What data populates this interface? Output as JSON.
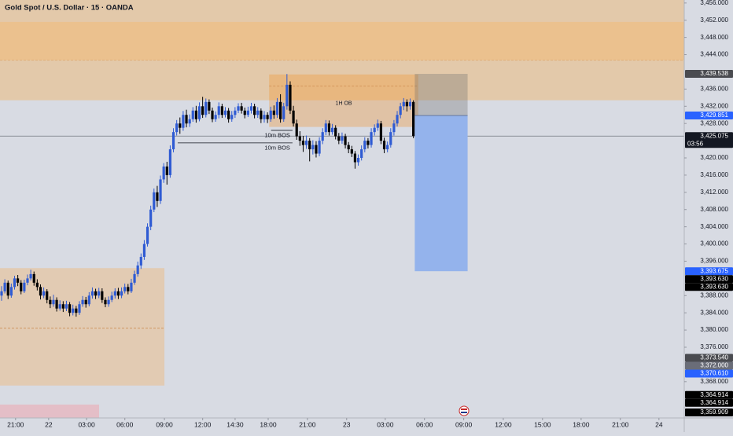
{
  "chart_data": {
    "type": "candlestick",
    "title": "Gold Spot / U.S. Dollar · 15 · OANDA",
    "up_color": "#2f5bd3",
    "down_color": "#000000",
    "xlim": [
      0,
      211
    ],
    "ylim": [
      3360.3,
      3456.7
    ],
    "xticks": [
      {
        "value": 4.8,
        "label": "21:00"
      },
      {
        "value": 15,
        "label": "22"
      },
      {
        "value": 26.7,
        "label": "03:00"
      },
      {
        "value": 38.5,
        "label": "06:00"
      },
      {
        "value": 50.7,
        "label": "09:00"
      },
      {
        "value": 62.5,
        "label": "12:00"
      },
      {
        "value": 72.5,
        "label": "14:30"
      },
      {
        "value": 82.7,
        "label": "18:00"
      },
      {
        "value": 94.8,
        "label": "21:00"
      },
      {
        "value": 106.9,
        "label": "23"
      },
      {
        "value": 118.8,
        "label": "03:00"
      },
      {
        "value": 130.9,
        "label": "06:00"
      },
      {
        "value": 143,
        "label": "09:00"
      },
      {
        "value": 155.2,
        "label": "12:00"
      },
      {
        "value": 167.3,
        "label": "15:00"
      },
      {
        "value": 179.2,
        "label": "18:00"
      },
      {
        "value": 191.3,
        "label": "21:00"
      },
      {
        "value": 203.2,
        "label": "24"
      }
    ],
    "yticks": [
      {
        "value": 3456,
        "label": "3,456.000"
      },
      {
        "value": 3452,
        "label": "3,452.000"
      },
      {
        "value": 3448,
        "label": "3,448.000"
      },
      {
        "value": 3444,
        "label": "3,444.000"
      },
      {
        "value": 3436,
        "label": "3,436.000"
      },
      {
        "value": 3432,
        "label": "3,432.000"
      },
      {
        "value": 3428,
        "label": "3,428.000"
      },
      {
        "value": 3420,
        "label": "3,420.000"
      },
      {
        "value": 3416,
        "label": "3,416.000"
      },
      {
        "value": 3412,
        "label": "3,412.000"
      },
      {
        "value": 3408,
        "label": "3,408.000"
      },
      {
        "value": 3404,
        "label": "3,404.000"
      },
      {
        "value": 3400,
        "label": "3,400.000"
      },
      {
        "value": 3396,
        "label": "3,396.000"
      },
      {
        "value": 3388,
        "label": "3,388.000"
      },
      {
        "value": 3384,
        "label": "3,384.000"
      },
      {
        "value": 3380,
        "label": "3,380.000"
      },
      {
        "value": 3376,
        "label": "3,376.000"
      },
      {
        "value": 3368,
        "label": "3,368.000"
      }
    ],
    "zones": [
      {
        "top": 3456.7,
        "bottom": 3433.4,
        "start": 0,
        "end": 211,
        "color": "#e3c9aa",
        "levels": [
          3442.7
        ]
      },
      {
        "top": 3451.6,
        "bottom": 3442.7,
        "start": 0,
        "end": 211,
        "color": "#ebc18e",
        "levels": []
      },
      {
        "top": 3394.4,
        "bottom": 3367.1,
        "start": 0,
        "end": 50.7,
        "color": "#e2cbb3",
        "levels": [
          3380.4
        ]
      },
      {
        "top": 3439.4,
        "bottom": 3427.2,
        "start": 83,
        "end": 129,
        "color": "rgba(240,150,50,0.35)",
        "levels": [
          3436.7
        ],
        "label": "1H OB"
      }
    ],
    "bos": [
      {
        "price": 3426.4,
        "start": 83.6,
        "end": 90.2,
        "label": "10m BOS"
      },
      {
        "price": 3423.5,
        "start": 54.8,
        "end": 90.2,
        "label": "10m BOS"
      }
    ],
    "position": {
      "entry": 3429.851,
      "stop": 3439.538,
      "target": 3393.675,
      "start": 127.9,
      "end": 144.2,
      "stop_color": "rgba(110,110,110,0.33)",
      "target_color": "#94b3ec"
    },
    "tags": [
      {
        "value": 3372,
        "label": "3,372.000",
        "color": "#6a6d78"
      },
      {
        "value": 3439.538,
        "label": "3,439.538",
        "color": "#4a4b50"
      },
      {
        "value": 3429.851,
        "label": "3,429.851",
        "color": "#2962ff"
      },
      {
        "value": 3425.075,
        "label": "3,425.075",
        "sub": "03:56",
        "color": "#131722",
        "line": true
      },
      {
        "value": 3393.675,
        "label": "3,393.675",
        "color": "#2962ff"
      },
      {
        "value": 3393.63,
        "label": "3,393.630",
        "color": "#000000"
      },
      {
        "value": 3393.63,
        "label": "3,393.630",
        "color": "#000000"
      },
      {
        "value": 3373.54,
        "label": "3,373.540",
        "color": "#4a4b50"
      },
      {
        "value": 3370.61,
        "label": "3,370.610",
        "color": "#2962ff"
      },
      {
        "value": 3364.914,
        "label": "3,364.914",
        "color": "#000000"
      },
      {
        "value": 3364.914,
        "label": "3,364.914",
        "color": "#000000"
      },
      {
        "value": 3359.909,
        "label": "3,359.909",
        "color": "#000000"
      }
    ],
    "candles": [
      [
        3388,
        3390.2,
        3386.8,
        3389
      ],
      [
        3389,
        3391.8,
        3388.5,
        3391
      ],
      [
        3391,
        3391.5,
        3387.2,
        3388
      ],
      [
        3388,
        3390.8,
        3387.5,
        3390
      ],
      [
        3390,
        3392.6,
        3389.4,
        3392
      ],
      [
        3392,
        3392.8,
        3390.2,
        3391
      ],
      [
        3391,
        3391.6,
        3388.3,
        3389
      ],
      [
        3389,
        3391.7,
        3388.6,
        3391
      ],
      [
        3391,
        3392.9,
        3390.4,
        3392
      ],
      [
        3392,
        3394,
        3391.5,
        3393
      ],
      [
        3393,
        3393.6,
        3390.3,
        3391
      ],
      [
        3391,
        3391.8,
        3389.2,
        3390
      ],
      [
        3390,
        3390.6,
        3387.1,
        3388
      ],
      [
        3388,
        3389.9,
        3387.4,
        3389
      ],
      [
        3389,
        3389.5,
        3386.2,
        3387
      ],
      [
        3387,
        3387.8,
        3385.1,
        3386
      ],
      [
        3386,
        3388.2,
        3385.4,
        3387
      ],
      [
        3387,
        3387.6,
        3384.3,
        3385
      ],
      [
        3385,
        3386.9,
        3384.5,
        3386
      ],
      [
        3386,
        3386.7,
        3384.2,
        3385
      ],
      [
        3385,
        3386.8,
        3384.4,
        3386
      ],
      [
        3386,
        3386.5,
        3383.2,
        3384
      ],
      [
        3384,
        3385.9,
        3383.4,
        3385
      ],
      [
        3385,
        3385.6,
        3383.1,
        3384
      ],
      [
        3384,
        3386.7,
        3383.5,
        3386
      ],
      [
        3386,
        3387.9,
        3385.4,
        3387
      ],
      [
        3387,
        3387.7,
        3385.2,
        3386
      ],
      [
        3386,
        3388.8,
        3385.5,
        3388
      ],
      [
        3388,
        3389.9,
        3387.3,
        3389
      ],
      [
        3389,
        3389.6,
        3387.2,
        3388
      ],
      [
        3388,
        3389.8,
        3387.4,
        3389
      ],
      [
        3389,
        3389.7,
        3386.3,
        3387
      ],
      [
        3387,
        3387.6,
        3385.3,
        3386
      ],
      [
        3386,
        3387.8,
        3385.4,
        3387
      ],
      [
        3387,
        3388.9,
        3386.5,
        3388
      ],
      [
        3388,
        3389.7,
        3387.3,
        3389
      ],
      [
        3389,
        3389.8,
        3387.2,
        3388
      ],
      [
        3388,
        3389.9,
        3387.4,
        3389
      ],
      [
        3389,
        3390.8,
        3388.5,
        3390
      ],
      [
        3390,
        3390.7,
        3388.3,
        3389
      ],
      [
        3389,
        3391.9,
        3388.6,
        3391
      ],
      [
        3391,
        3393.8,
        3390.5,
        3393
      ],
      [
        3393,
        3395.9,
        3392.4,
        3395
      ],
      [
        3395,
        3397.8,
        3394.2,
        3397
      ],
      [
        3397,
        3400.9,
        3396.3,
        3400
      ],
      [
        3400,
        3404.8,
        3399.4,
        3404
      ],
      [
        3404,
        3408.9,
        3403.2,
        3408
      ],
      [
        3408,
        3412.9,
        3407.4,
        3412
      ],
      [
        3412,
        3413.5,
        3408.6,
        3410
      ],
      [
        3410,
        3415.9,
        3409.3,
        3415
      ],
      [
        3415,
        3418.8,
        3414.2,
        3418
      ],
      [
        3418,
        3419.1,
        3413.8,
        3416
      ],
      [
        3416,
        3422.9,
        3415.4,
        3422
      ],
      [
        3422,
        3426.9,
        3421.3,
        3426
      ],
      [
        3426,
        3428.8,
        3425.2,
        3428
      ],
      [
        3428,
        3429.4,
        3425.6,
        3427
      ],
      [
        3427,
        3430.9,
        3426.3,
        3430
      ],
      [
        3430,
        3431.2,
        3427.1,
        3428
      ],
      [
        3428,
        3430.1,
        3427.2,
        3429
      ],
      [
        3429,
        3431.8,
        3428.4,
        3431
      ],
      [
        3431,
        3432.1,
        3428.2,
        3429
      ],
      [
        3429,
        3432.9,
        3428.5,
        3432
      ],
      [
        3432,
        3434.2,
        3429.3,
        3430
      ],
      [
        3430,
        3433.8,
        3429.4,
        3433
      ],
      [
        3433,
        3433.6,
        3430.2,
        3431
      ],
      [
        3431,
        3431.7,
        3428.3,
        3429
      ],
      [
        3429,
        3430.8,
        3428.4,
        3430
      ],
      [
        3430,
        3432.9,
        3429.2,
        3432
      ],
      [
        3432,
        3432.6,
        3429.3,
        3430
      ],
      [
        3430,
        3431.8,
        3429.4,
        3431
      ],
      [
        3431,
        3431.6,
        3428.2,
        3429
      ],
      [
        3429,
        3430.9,
        3428.4,
        3430
      ],
      [
        3430,
        3431.8,
        3429.3,
        3431
      ],
      [
        3431,
        3432.7,
        3430.4,
        3432
      ],
      [
        3432,
        3432.8,
        3430.3,
        3431
      ],
      [
        3431,
        3431.7,
        3429.2,
        3430
      ],
      [
        3430,
        3431.9,
        3429.5,
        3431
      ],
      [
        3431,
        3432.8,
        3430.3,
        3432
      ],
      [
        3432,
        3432.6,
        3429.2,
        3430
      ],
      [
        3430,
        3431.8,
        3429.3,
        3431
      ],
      [
        3431,
        3431.5,
        3428.1,
        3429
      ],
      [
        3429,
        3430.9,
        3428.2,
        3430
      ],
      [
        3430,
        3430.6,
        3428.1,
        3429
      ],
      [
        3429,
        3431.9,
        3428.4,
        3431
      ],
      [
        3431,
        3432.2,
        3429.1,
        3430
      ],
      [
        3430,
        3433.9,
        3429.3,
        3433
      ],
      [
        3433,
        3434.8,
        3428.2,
        3429
      ],
      [
        3429,
        3432.8,
        3428.4,
        3432
      ],
      [
        3432,
        3439.5,
        3431.2,
        3437
      ],
      [
        3437,
        3437.8,
        3430.2,
        3431
      ],
      [
        3431,
        3432.1,
        3427.3,
        3428
      ],
      [
        3428,
        3428.9,
        3424.2,
        3425
      ],
      [
        3425,
        3426.2,
        3422.8,
        3424
      ],
      [
        3424,
        3425.1,
        3421.4,
        3423
      ],
      [
        3423,
        3425.2,
        3422.1,
        3424
      ],
      [
        3424,
        3424.6,
        3419.2,
        3422
      ],
      [
        3422,
        3424.1,
        3420.8,
        3423
      ],
      [
        3423,
        3423.9,
        3420.1,
        3421
      ],
      [
        3421,
        3424.8,
        3420.4,
        3424
      ],
      [
        3424,
        3426.9,
        3423.2,
        3426
      ],
      [
        3426,
        3428.8,
        3425.3,
        3428
      ],
      [
        3428,
        3428.7,
        3425.2,
        3426
      ],
      [
        3426,
        3427.9,
        3425.4,
        3427
      ],
      [
        3427,
        3427.6,
        3424.3,
        3425
      ],
      [
        3425,
        3425.8,
        3423.2,
        3424
      ],
      [
        3424,
        3425.9,
        3423.3,
        3425
      ],
      [
        3425,
        3425.6,
        3422.2,
        3423
      ],
      [
        3423,
        3423.7,
        3421.1,
        3422
      ],
      [
        3422,
        3422.8,
        3420.2,
        3421
      ],
      [
        3421,
        3421.6,
        3417.5,
        3419
      ],
      [
        3419,
        3420.8,
        3418.2,
        3420
      ],
      [
        3420,
        3422.9,
        3419.4,
        3422
      ],
      [
        3422,
        3424.8,
        3421.3,
        3424
      ],
      [
        3424,
        3424.6,
        3422.2,
        3423
      ],
      [
        3423,
        3426.9,
        3422.4,
        3426
      ],
      [
        3426,
        3427.8,
        3425.2,
        3427
      ],
      [
        3427,
        3428.9,
        3426.3,
        3428
      ],
      [
        3428,
        3428.6,
        3423.2,
        3424
      ],
      [
        3424,
        3424.7,
        3421.1,
        3422
      ],
      [
        3422,
        3423.8,
        3421.3,
        3423
      ],
      [
        3423,
        3426.9,
        3422.4,
        3426
      ],
      [
        3426,
        3428.8,
        3425.2,
        3428
      ],
      [
        3428,
        3430.9,
        3427.3,
        3430
      ],
      [
        3430,
        3432.8,
        3429.2,
        3432
      ],
      [
        3432,
        3433.9,
        3431.1,
        3433
      ],
      [
        3433,
        3433.6,
        3430.8,
        3432
      ],
      [
        3432,
        3433.8,
        3431.2,
        3433
      ],
      [
        3433,
        3433.4,
        3424.6,
        3425.075
      ]
    ]
  }
}
